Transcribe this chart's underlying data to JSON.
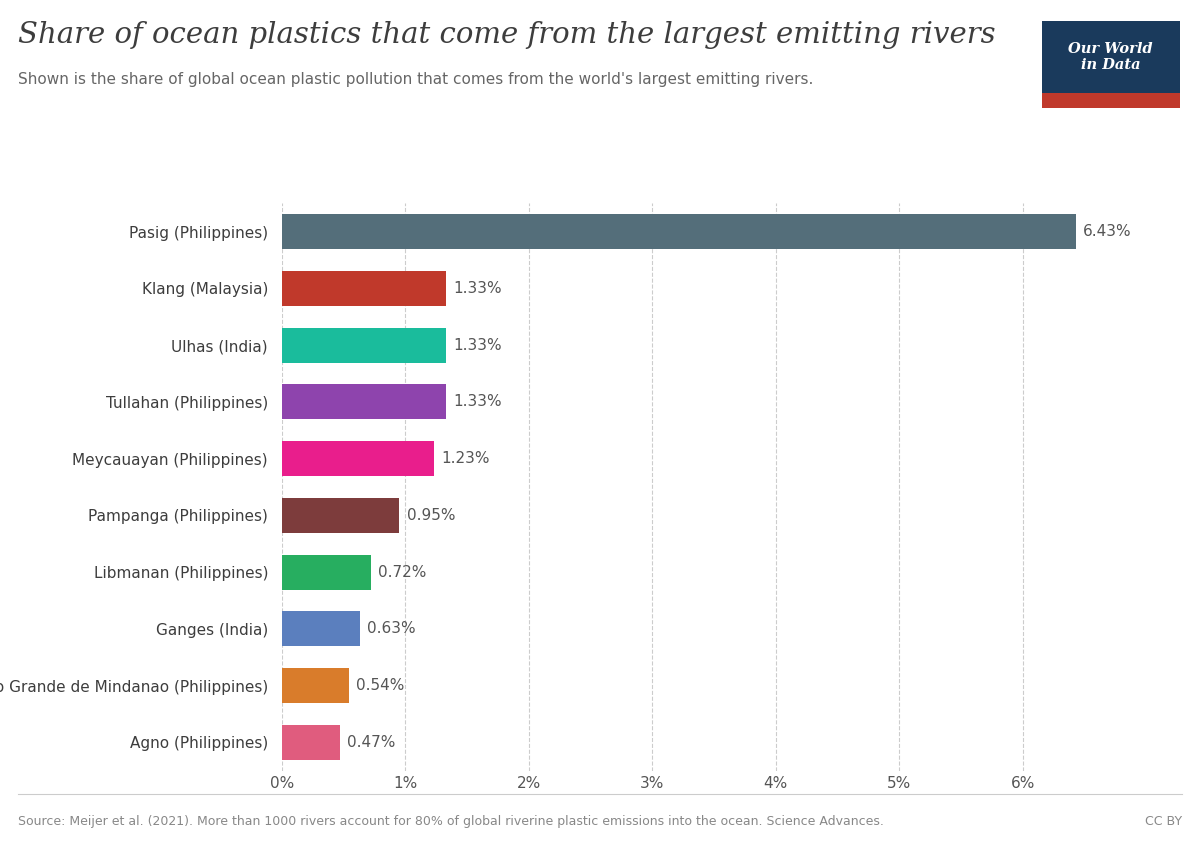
{
  "title": "Share of ocean plastics that come from the largest emitting rivers",
  "subtitle": "Shown is the share of global ocean plastic pollution that comes from the world's largest emitting rivers.",
  "source": "Source: Meijer et al. (2021). More than 1000 rivers account for 80% of global riverine plastic emissions into the ocean. Science Advances.",
  "cc_by": "CC BY",
  "rivers": [
    "Pasig (Philippines)",
    "Klang (Malaysia)",
    "Ulhas (India)",
    "Tullahan (Philippines)",
    "Meycauayan (Philippines)",
    "Pampanga (Philippines)",
    "Libmanan (Philippines)",
    "Ganges (India)",
    "Rio Grande de Mindanao (Philippines)",
    "Agno (Philippines)"
  ],
  "values": [
    6.43,
    1.33,
    1.33,
    1.33,
    1.23,
    0.95,
    0.72,
    0.63,
    0.54,
    0.47
  ],
  "colors": [
    "#546e7a",
    "#c0392b",
    "#1abc9c",
    "#8e44ad",
    "#e91e8c",
    "#7d3c3c",
    "#27ae60",
    "#5b7fbe",
    "#d97c2b",
    "#e05c7e"
  ],
  "bar_labels": [
    "6.43%",
    "1.33%",
    "1.33%",
    "1.33%",
    "1.23%",
    "0.95%",
    "0.72%",
    "0.63%",
    "0.54%",
    "0.47%"
  ],
  "xlim": [
    0,
    7.0
  ],
  "xticks": [
    0,
    1,
    2,
    3,
    4,
    5,
    6
  ],
  "xtick_labels": [
    "0%",
    "1%",
    "2%",
    "3%",
    "4%",
    "5%",
    "6%"
  ],
  "background_color": "#ffffff",
  "title_color": "#3d3d3d",
  "subtitle_color": "#666666",
  "source_color": "#888888",
  "label_color": "#555555",
  "grid_color": "#cccccc",
  "owid_navy": "#1a3a5c",
  "owid_red": "#c0392b"
}
